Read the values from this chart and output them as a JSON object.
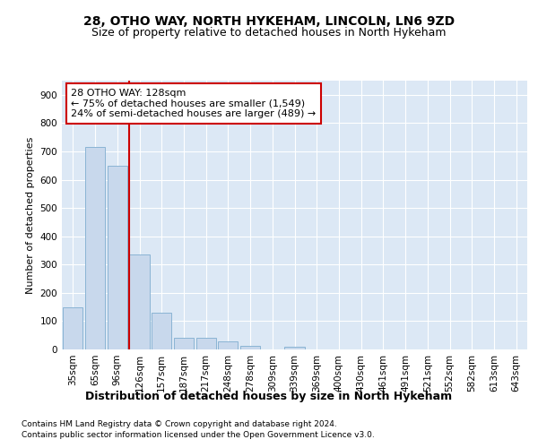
{
  "title_line1": "28, OTHO WAY, NORTH HYKEHAM, LINCOLN, LN6 9ZD",
  "title_line2": "Size of property relative to detached houses in North Hykeham",
  "xlabel": "Distribution of detached houses by size in North Hykeham",
  "ylabel": "Number of detached properties",
  "categories": [
    "35sqm",
    "65sqm",
    "96sqm",
    "126sqm",
    "157sqm",
    "187sqm",
    "217sqm",
    "248sqm",
    "278sqm",
    "309sqm",
    "339sqm",
    "369sqm",
    "400sqm",
    "430sqm",
    "461sqm",
    "491sqm",
    "521sqm",
    "552sqm",
    "582sqm",
    "613sqm",
    "643sqm"
  ],
  "values": [
    150,
    715,
    650,
    335,
    130,
    42,
    42,
    30,
    13,
    0,
    10,
    0,
    0,
    0,
    0,
    0,
    0,
    0,
    0,
    0,
    0
  ],
  "bar_color": "#c8d8ec",
  "bar_edge_color": "#8ab4d4",
  "vline_index": 3,
  "vline_color": "#cc0000",
  "annotation_text": "28 OTHO WAY: 128sqm\n← 75% of detached houses are smaller (1,549)\n24% of semi-detached houses are larger (489) →",
  "annotation_box_facecolor": "#ffffff",
  "annotation_box_edgecolor": "#cc0000",
  "ylim": [
    0,
    950
  ],
  "yticks": [
    0,
    100,
    200,
    300,
    400,
    500,
    600,
    700,
    800,
    900
  ],
  "footnote_line1": "Contains HM Land Registry data © Crown copyright and database right 2024.",
  "footnote_line2": "Contains public sector information licensed under the Open Government Licence v3.0.",
  "fig_facecolor": "#ffffff",
  "plot_facecolor": "#dce8f5",
  "grid_color": "#ffffff",
  "title_fontsize": 10,
  "subtitle_fontsize": 9,
  "xlabel_fontsize": 9,
  "ylabel_fontsize": 8,
  "tick_fontsize": 7.5,
  "annotation_fontsize": 8,
  "footnote_fontsize": 6.5
}
